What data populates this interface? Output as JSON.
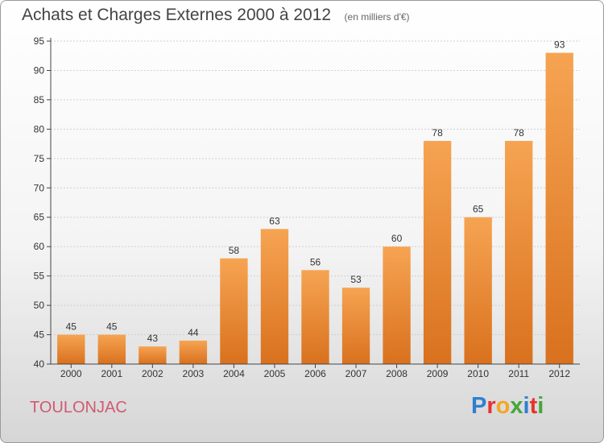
{
  "title": "Achats et Charges Externes 2000 à 2012",
  "subtitle": "(en milliers d'€)",
  "location": "TOULONJAC",
  "brand": {
    "letters": [
      "P",
      "r",
      "o",
      "x",
      "i",
      "t",
      "i"
    ],
    "colors": [
      "#2f7fd0",
      "#e8322e",
      "#f5a623",
      "#44a63a",
      "#2f7fd0",
      "#e8322e",
      "#44a63a"
    ]
  },
  "colors": {
    "bar_top": "#f6a452",
    "bar_bottom": "#d9711e",
    "axis": "#444444",
    "grid": "#d0d0d0",
    "location": "#d05a72"
  },
  "chart_data": {
    "type": "bar",
    "categories": [
      "2000",
      "2001",
      "2002",
      "2003",
      "2004",
      "2005",
      "2006",
      "2007",
      "2008",
      "2009",
      "2010",
      "2011",
      "2012"
    ],
    "values": [
      45,
      45,
      43,
      44,
      58,
      63,
      56,
      53,
      60,
      78,
      65,
      78,
      93
    ],
    "ylim": [
      40,
      95
    ],
    "yticks": [
      40,
      45,
      50,
      55,
      60,
      65,
      70,
      75,
      80,
      85,
      90,
      95
    ],
    "grid": true
  }
}
